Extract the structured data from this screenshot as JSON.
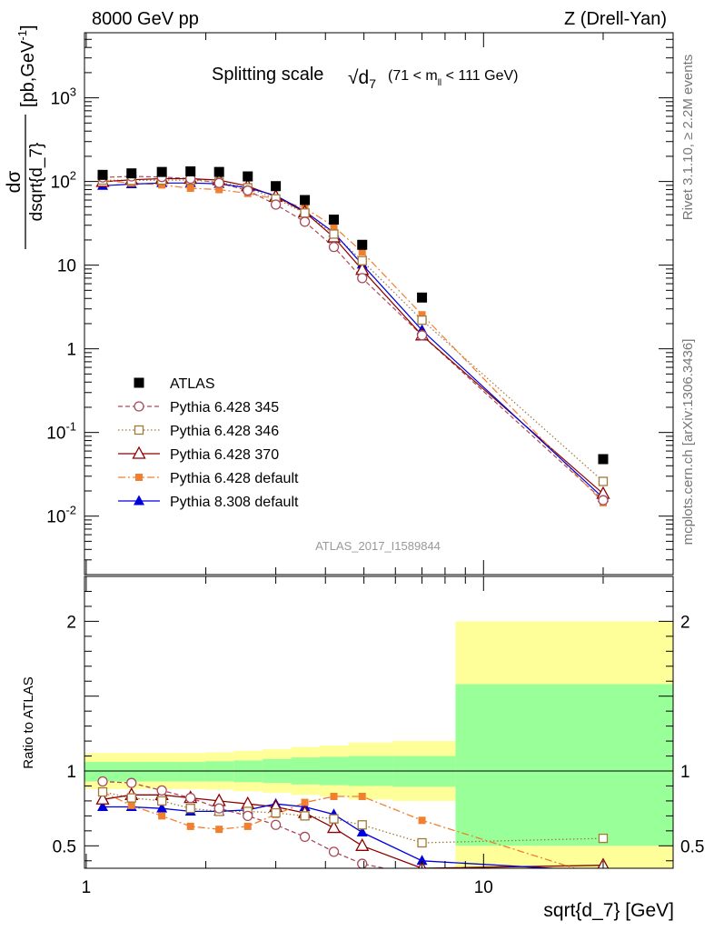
{
  "header": {
    "left": "8000 GeV pp",
    "right": "Z (Drell-Yan)"
  },
  "side_text": {
    "rivet": "Rivet 3.1.10, ≥ 2.2M events",
    "mcplots": "mcplots.cern.ch [arXiv:1306.3436]"
  },
  "colors": {
    "atlas": "#000000",
    "p345": "#a94a5a",
    "p346": "#a07a3a",
    "p370": "#8b0000",
    "p6def": "#f07f30",
    "p8def": "#0000dd",
    "band_inner": "#99ff99",
    "band_outer": "#ffff99"
  },
  "chart_data": [
    {
      "type": "scatter",
      "panel": "main",
      "title_main": "Splitting scale",
      "title_sym": "√d",
      "title_sym_sub": "7",
      "title_range": "(71 < m",
      "title_range_sub": "ll",
      "title_range_end": " < 111 GeV)",
      "ylabel_num": "dσ",
      "ylabel_den": "dsqrt{d_7}",
      "ylabel_units": "[pb,GeV",
      "ylabel_units_sup": "-1",
      "ylabel_units_end": "]",
      "watermark": "ATLAS_2017_I1589844",
      "xscale": "log",
      "yscale": "log",
      "xlim": [
        0.99,
        30
      ],
      "ylim": [
        0.002,
        6000
      ],
      "yticks": [
        {
          "value": 0.01,
          "base": "10",
          "exp": "-2"
        },
        {
          "value": 0.1,
          "base": "10",
          "exp": "-1"
        },
        {
          "value": 1,
          "base": "1",
          "exp": ""
        },
        {
          "value": 10,
          "base": "10",
          "exp": ""
        },
        {
          "value": 100,
          "base": "10",
          "exp": "2"
        },
        {
          "value": 1000,
          "base": "10",
          "exp": "3"
        }
      ],
      "x": [
        1.1,
        1.3,
        1.55,
        1.83,
        2.16,
        2.55,
        3.0,
        3.55,
        4.2,
        4.95,
        7.0,
        20.0
      ],
      "series": [
        {
          "name": "ATLAS",
          "key": "atlas",
          "marker": "square",
          "line": "none",
          "values": [
            120,
            125,
            130,
            132,
            130,
            115,
            88,
            60,
            35,
            17.5,
            4.1,
            0.048
          ]
        },
        {
          "name": "Pythia 6.428 345",
          "key": "p345",
          "marker": "circle-open",
          "line": "dashed",
          "values": [
            112,
            115,
            113,
            108,
            96,
            78,
            53,
            33,
            16.5,
            7.0,
            1.45,
            0.0155
          ]
        },
        {
          "name": "Pythia 6.428 346",
          "key": "p346",
          "marker": "square-open",
          "line": "dotted",
          "values": [
            104,
            103,
            104,
            104,
            98,
            84,
            62,
            42,
            23.5,
            11.3,
            2.2,
            0.026
          ]
        },
        {
          "name": "Pythia 6.428 370",
          "key": "p370",
          "marker": "triangle-open",
          "line": "solid",
          "values": [
            99,
            105,
            108,
            108,
            104,
            88,
            66,
            43,
            21.5,
            8.8,
            1.45,
            0.0185
          ]
        },
        {
          "name": "Pythia 6.428 default",
          "key": "p6def",
          "marker": "square-small",
          "line": "dashdot",
          "values": [
            103,
            96,
            91,
            83,
            80,
            72,
            62,
            48,
            29,
            14.4,
            2.55,
            0.0145
          ]
        },
        {
          "name": "Pythia 8.308 default",
          "key": "p8def",
          "marker": "triangle",
          "line": "solid",
          "values": [
            89,
            93,
            96,
            96,
            94,
            84,
            68,
            44,
            24.5,
            10.2,
            1.67,
            0.0165
          ]
        }
      ]
    },
    {
      "type": "line",
      "panel": "ratio",
      "ylabel": "Ratio to ATLAS",
      "xlabel": "sqrt{d_7} [GeV]",
      "xscale": "log",
      "xlim": [
        0.99,
        30
      ],
      "ylim": [
        0.35,
        2.3
      ],
      "yticks": [
        0.5,
        1,
        2
      ],
      "xticks": [
        {
          "value": 1,
          "label": "1"
        },
        {
          "value": 10,
          "label": "10"
        }
      ],
      "bins": [
        {
          "x0": 0.99,
          "x1": 1.2,
          "inner": [
            0.93,
            1.06
          ],
          "outer": [
            0.88,
            1.12
          ]
        },
        {
          "x0": 1.2,
          "x1": 1.42,
          "inner": [
            0.93,
            1.06
          ],
          "outer": [
            0.88,
            1.12
          ]
        },
        {
          "x0": 1.42,
          "x1": 1.68,
          "inner": [
            0.93,
            1.06
          ],
          "outer": [
            0.88,
            1.12
          ]
        },
        {
          "x0": 1.68,
          "x1": 1.99,
          "inner": [
            0.93,
            1.06
          ],
          "outer": [
            0.88,
            1.12
          ]
        },
        {
          "x0": 1.99,
          "x1": 2.35,
          "inner": [
            0.93,
            1.065
          ],
          "outer": [
            0.875,
            1.125
          ]
        },
        {
          "x0": 2.35,
          "x1": 2.78,
          "inner": [
            0.925,
            1.07
          ],
          "outer": [
            0.865,
            1.135
          ]
        },
        {
          "x0": 2.78,
          "x1": 3.28,
          "inner": [
            0.92,
            1.08
          ],
          "outer": [
            0.855,
            1.145
          ]
        },
        {
          "x0": 3.28,
          "x1": 3.87,
          "inner": [
            0.91,
            1.09
          ],
          "outer": [
            0.84,
            1.16
          ]
        },
        {
          "x0": 3.87,
          "x1": 4.57,
          "inner": [
            0.905,
            1.095
          ],
          "outer": [
            0.83,
            1.17
          ]
        },
        {
          "x0": 4.57,
          "x1": 5.9,
          "inner": [
            0.9,
            1.1
          ],
          "outer": [
            0.81,
            1.19
          ]
        },
        {
          "x0": 5.9,
          "x1": 8.5,
          "inner": [
            0.895,
            1.1
          ],
          "outer": [
            0.8,
            1.2
          ]
        },
        {
          "x0": 8.5,
          "x1": 30,
          "inner": [
            0.5,
            1.58
          ],
          "outer": [
            0.3,
            2.0
          ]
        }
      ],
      "series": [
        {
          "name": "Pythia 6.428 345",
          "key": "p345",
          "marker": "circle-open",
          "line": "dashed",
          "values": [
            0.93,
            0.92,
            0.87,
            0.82,
            0.75,
            0.7,
            0.64,
            0.56,
            0.46,
            0.38,
            0.3,
            0.3
          ]
        },
        {
          "name": "Pythia 6.428 346",
          "key": "p346",
          "marker": "square-open",
          "line": "dotted",
          "values": [
            0.86,
            0.82,
            0.8,
            0.75,
            0.73,
            0.73,
            0.72,
            0.7,
            0.68,
            0.64,
            0.52,
            0.55
          ]
        },
        {
          "name": "Pythia 6.428 370",
          "key": "p370",
          "marker": "triangle-open",
          "line": "solid",
          "values": [
            0.81,
            0.84,
            0.84,
            0.82,
            0.8,
            0.78,
            0.76,
            0.72,
            0.62,
            0.5,
            0.35,
            0.37
          ]
        },
        {
          "name": "Pythia 6.428 default",
          "key": "p6def",
          "marker": "square-small",
          "line": "dashdot",
          "values": [
            0.86,
            0.77,
            0.7,
            0.63,
            0.61,
            0.63,
            0.71,
            0.79,
            0.83,
            0.83,
            0.67,
            0.29
          ]
        },
        {
          "name": "Pythia 8.308 default",
          "key": "p8def",
          "marker": "triangle",
          "line": "solid",
          "values": [
            0.76,
            0.76,
            0.75,
            0.73,
            0.73,
            0.74,
            0.78,
            0.76,
            0.71,
            0.59,
            0.4,
            0.33
          ]
        }
      ]
    }
  ]
}
